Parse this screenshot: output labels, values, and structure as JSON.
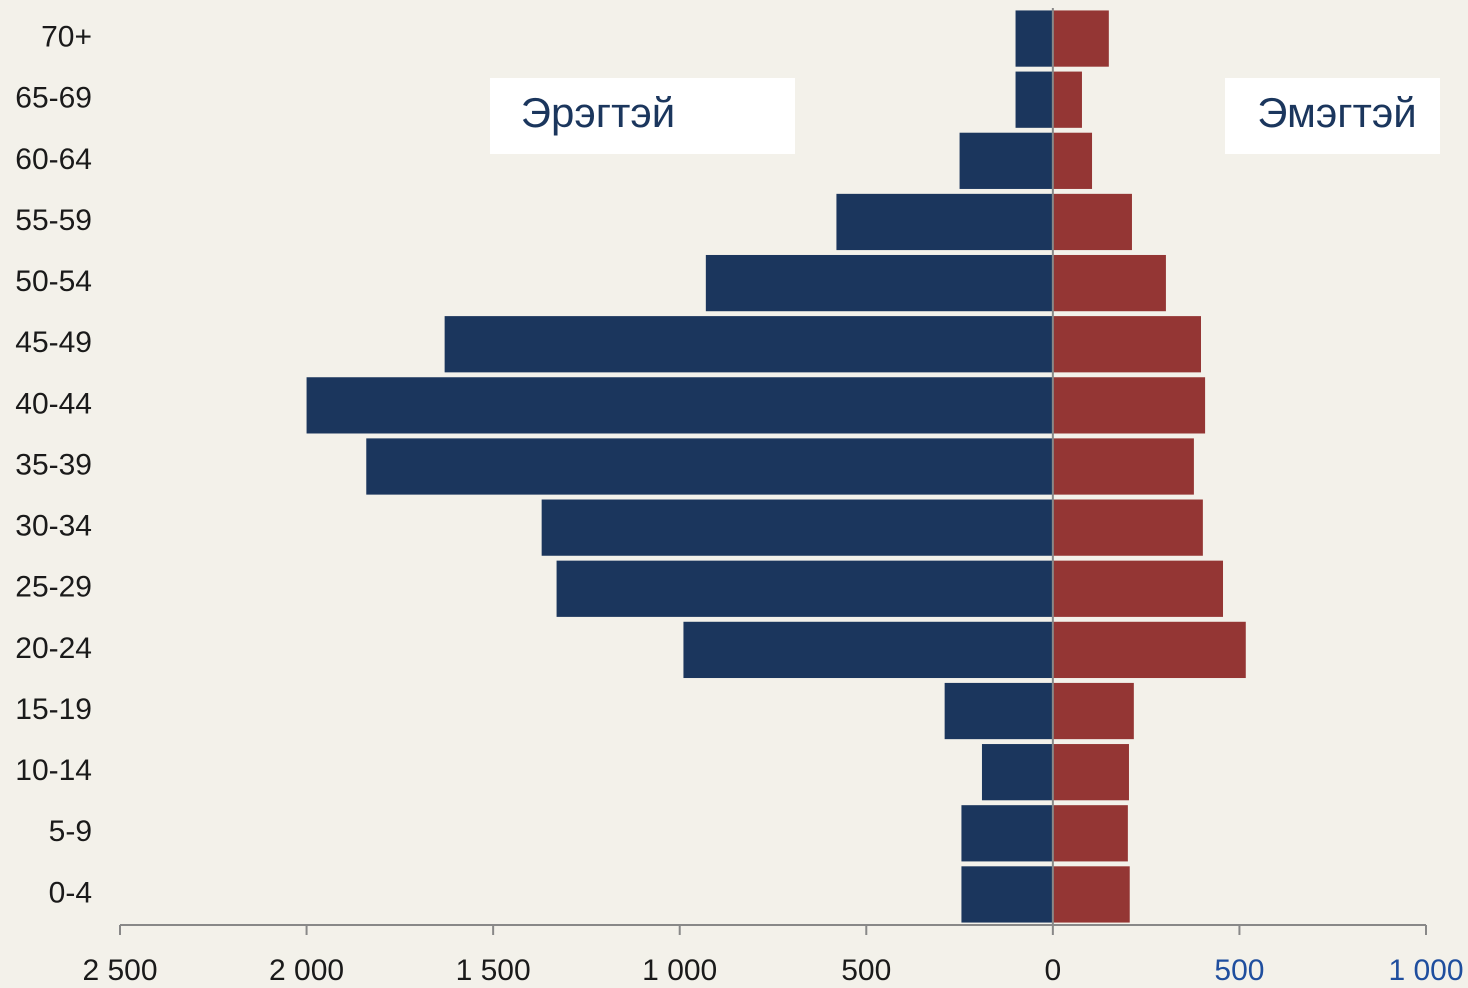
{
  "chart_data": {
    "type": "bar",
    "orientation": "horizontal",
    "stacked": false,
    "categories": [
      "0-4",
      "5-9",
      "10-14",
      "15-19",
      "20-24",
      "25-29",
      "30-34",
      "35-39",
      "40-44",
      "45-49",
      "50-54",
      "55-59",
      "60-64",
      "65-69",
      "70+"
    ],
    "series": [
      {
        "name": "Эрэгтэй",
        "color": "#1b365d",
        "values": [
          -245,
          -245,
          -190,
          -290,
          -990,
          -1330,
          -1370,
          -1840,
          -2000,
          -1630,
          -930,
          -580,
          -250,
          -100,
          -100
        ]
      },
      {
        "name": "Эмэгтэй",
        "color": "#943634",
        "values": [
          206,
          201,
          204,
          217,
          517,
          456,
          402,
          378,
          408,
          397,
          303,
          212,
          105,
          78,
          150
        ]
      }
    ],
    "xlim": [
      -2500,
      1000
    ],
    "xticks": [
      {
        "value": -2500,
        "label": "2 500"
      },
      {
        "value": -2000,
        "label": "2 000"
      },
      {
        "value": -1500,
        "label": "1 500"
      },
      {
        "value": -1000,
        "label": "1 000"
      },
      {
        "value": -500,
        "label": "500"
      },
      0,
      500,
      {
        "value": 1000,
        "label": "1 000"
      }
    ]
  }
}
